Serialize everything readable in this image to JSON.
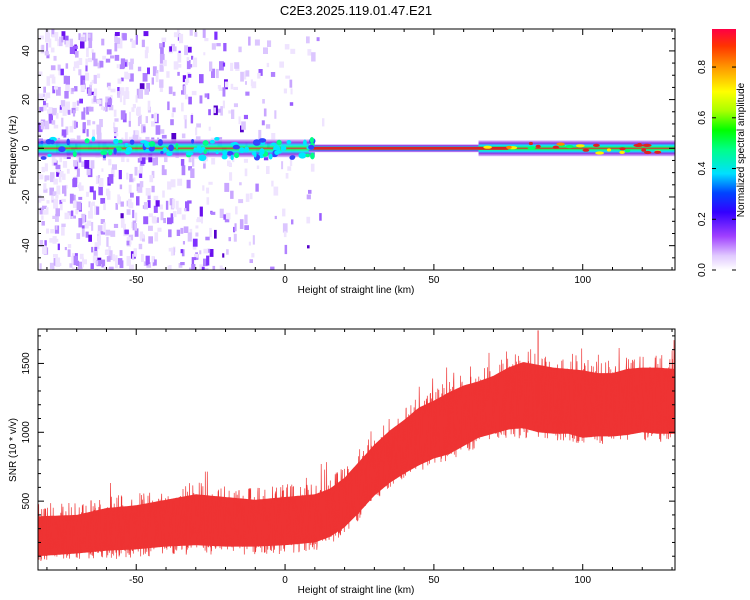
{
  "title": "C2E3.2025.119.01.47.E21",
  "colors": {
    "snr_line": "#ee3333",
    "low_noise": "#b070ff",
    "band_core": "#dd2222",
    "band_mid": "#00ff66",
    "band_edge": "#3300ff"
  },
  "chart_data": [
    {
      "type": "heatmap",
      "xlabel": "Height of straight line (km)",
      "ylabel": "Frequency (Hz)",
      "xlim": [
        -83,
        131
      ],
      "ylim": [
        -50,
        49
      ],
      "xticks": [
        -50,
        0,
        50,
        100
      ],
      "yticks": [
        -40,
        -20,
        0,
        20,
        40
      ],
      "colorbar": {
        "label": "Normalized spectral amplitude",
        "ticks": [
          "0.0",
          "0.2",
          "0.4",
          "0.6",
          "0.8"
        ],
        "range": [
          0,
          0.95
        ],
        "colormap": "rainbow (white-violet-blue-cyan-green-yellow-orange-red)"
      },
      "band": {
        "center_frequency_hz": 0,
        "description": "dominant signal concentrated near 0 Hz across all heights; broadband noise for heights below ~8 km",
        "noise_extent_km": [
          -83,
          8
        ],
        "strongest_extent_km": [
          10,
          80
        ]
      }
    },
    {
      "type": "line",
      "xlabel": "Height of straight line (km)",
      "ylabel": "SNR (10 * v/v)",
      "xlim": [
        -83,
        131
      ],
      "ylim": [
        0,
        1750
      ],
      "xticks": [
        -50,
        0,
        50,
        100
      ],
      "yticks": [
        500,
        1000,
        1500
      ],
      "series": [
        {
          "x": [
            -83,
            -70,
            -60,
            -50,
            -40,
            -30,
            -20,
            -10,
            0,
            10,
            15,
            20,
            25,
            30,
            35,
            40,
            45,
            50,
            55,
            60,
            65,
            70,
            75,
            80,
            85,
            90,
            95,
            100,
            105,
            110,
            115,
            120,
            125,
            131
          ],
          "mean": [
            240,
            240,
            250,
            270,
            290,
            310,
            300,
            290,
            300,
            330,
            370,
            440,
            560,
            700,
            800,
            870,
            930,
            980,
            1020,
            1060,
            1110,
            1160,
            1190,
            1200,
            1190,
            1180,
            1170,
            1150,
            1150,
            1150,
            1170,
            1180,
            1170,
            1170
          ],
          "low": [
            60,
            80,
            100,
            110,
            130,
            140,
            130,
            130,
            140,
            160,
            200,
            270,
            380,
            500,
            590,
            660,
            720,
            770,
            800,
            860,
            920,
            950,
            980,
            990,
            960,
            950,
            950,
            920,
            930,
            930,
            940,
            960,
            950,
            950
          ],
          "high": [
            480,
            490,
            540,
            560,
            600,
            640,
            620,
            600,
            620,
            640,
            680,
            760,
            880,
            1000,
            1100,
            1180,
            1270,
            1320,
            1380,
            1430,
            1460,
            1500,
            1560,
            1600,
            1580,
            1560,
            1550,
            1540,
            1520,
            1520,
            1550,
            1560,
            1560,
            1550
          ],
          "peak": {
            "x": 85,
            "y": 1740
          }
        }
      ]
    }
  ]
}
